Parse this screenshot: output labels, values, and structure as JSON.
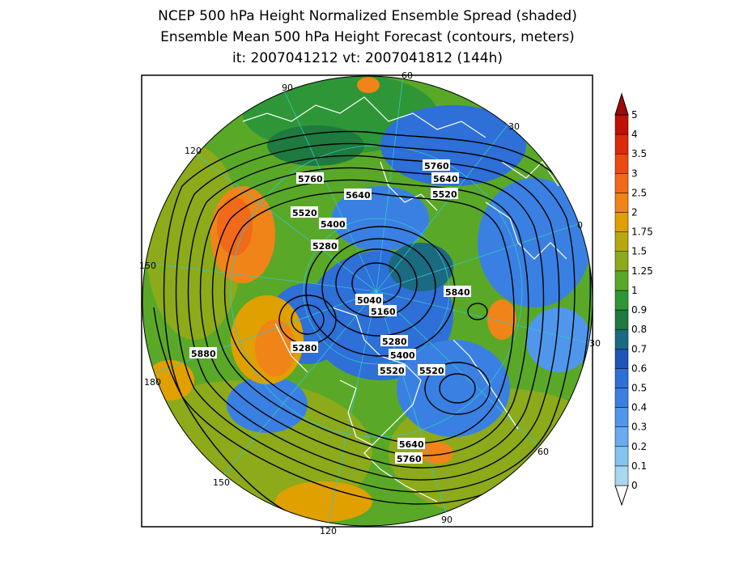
{
  "title": {
    "line1": "NCEP 500 hPa Height Normalized Ensemble Spread (shaded)",
    "line2": "Ensemble Mean 500 hPa Height Forecast (contours, meters)",
    "line3": "it: 2007041212       vt: 2007041812 (144h)"
  },
  "colorbar": {
    "labels": [
      "0",
      "0.1",
      "0.2",
      "0.3",
      "0.4",
      "0.5",
      "0.6",
      "0.7",
      "0.8",
      "0.9",
      "1",
      "1.25",
      "1.5",
      "1.75",
      "2",
      "2.5",
      "3",
      "3.5",
      "4",
      "5"
    ],
    "colors": [
      "#a8d8f0",
      "#86c4f0",
      "#6aaaf0",
      "#5096ec",
      "#3a80e2",
      "#2e6fd8",
      "#1d55b8",
      "#1a6a80",
      "#1e7a3e",
      "#2e9636",
      "#5aa828",
      "#8caa1a",
      "#b8a810",
      "#e0a000",
      "#f08418",
      "#f06a1a",
      "#ec4a10",
      "#dc2a0c",
      "#c01008",
      "#a00808"
    ]
  },
  "map": {
    "longitude_labels": [
      "60",
      "30",
      "0",
      "30",
      "60",
      "90",
      "120",
      "150",
      "180",
      "150",
      "120",
      "90"
    ],
    "contour_labels": [
      "5760",
      "5640",
      "5520",
      "5760",
      "5640",
      "5520",
      "5400",
      "5280",
      "5040",
      "5160",
      "5280",
      "5400",
      "5520",
      "5520",
      "5640",
      "5760",
      "5280",
      "5840",
      "5880"
    ]
  }
}
